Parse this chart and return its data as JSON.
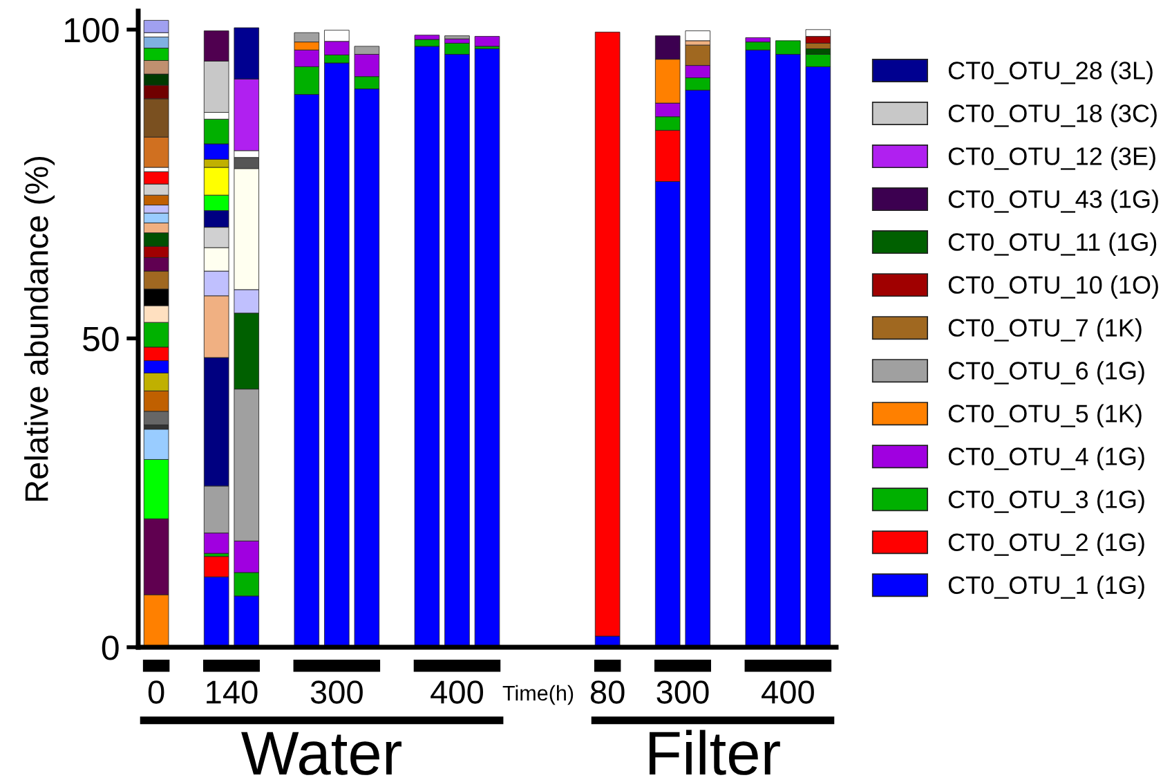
{
  "chart_data": {
    "type": "bar",
    "stacked": true,
    "ylabel": "Relative abundance (%)",
    "categories": [
      "0",
      null,
      "140",
      null,
      null,
      null,
      "300",
      null,
      null,
      null,
      "400",
      null,
      null,
      null,
      null,
      "80",
      null,
      "300",
      null,
      null,
      null,
      "400",
      null
    ],
    "ylim": [
      0,
      103
    ],
    "yticks": [
      0,
      50,
      100
    ],
    "legend": "right",
    "annotations": [
      "Time(h)",
      "Water",
      "Filter"
    ],
    "series": [
      {
        "name": "CT0_OTU_1 (1G)",
        "color": "#0000ff",
        "values": [
          null,
          null,
          11.4,
          8.3,
          null,
          89.5,
          94.6,
          90.4,
          null,
          97.3,
          96,
          96.9,
          null,
          null,
          null,
          1.8,
          null,
          75.4,
          90.2,
          null,
          96.7,
          96,
          94
        ]
      },
      {
        "name": "CT0_OTU_2 (1G)",
        "color": "#ff0000",
        "values": [
          null,
          null,
          3.3,
          null,
          null,
          null,
          null,
          null,
          null,
          null,
          null,
          null,
          null,
          null,
          null,
          97.8,
          null,
          8.3,
          null,
          null,
          null,
          null,
          null
        ]
      },
      {
        "name": "CT0_OTU_3 (1G)",
        "color": "#00b000",
        "values": [
          null,
          null,
          0.5,
          3.8,
          null,
          4.5,
          1.3,
          2,
          null,
          1.1,
          1.8,
          0.4,
          null,
          null,
          null,
          null,
          null,
          2.2,
          2,
          null,
          1.3,
          2.2,
          2
        ]
      },
      {
        "name": "CT0_OTU_4 (1G)",
        "color": "#a000e0",
        "values": [
          null,
          null,
          3.3,
          5.1,
          null,
          2.7,
          2.2,
          3.6,
          null,
          0.7,
          0.7,
          1.6,
          null,
          null,
          null,
          null,
          null,
          2.2,
          2,
          null,
          0.7,
          null,
          null
        ]
      },
      {
        "color": "#005000",
        "values": [
          null,
          null,
          null,
          null,
          null,
          null,
          null,
          null,
          null,
          null,
          null,
          null,
          null,
          null,
          null,
          null,
          null,
          null,
          null,
          null,
          null,
          null,
          0.9
        ]
      },
      {
        "name": "CT0_OTU_5 (1K)",
        "color": "#ff8000",
        "values": [
          8.5,
          null,
          null,
          null,
          null,
          1.3,
          null,
          null,
          null,
          null,
          null,
          null,
          null,
          null,
          null,
          null,
          null,
          7.1,
          null,
          null,
          null,
          null,
          null
        ]
      },
      {
        "name": "CT0_OTU_6 (1G)",
        "color": "#a0a0a0",
        "values": [
          null,
          null,
          7.6,
          24.6,
          null,
          1.5,
          null,
          1.3,
          null,
          null,
          0.5,
          null,
          null,
          null,
          null,
          null,
          null,
          null,
          null,
          null,
          null,
          null,
          null
        ]
      },
      {
        "name": "CT0_OTU_7 (1K)",
        "color": "#a06820",
        "values": [
          null,
          null,
          null,
          null,
          null,
          null,
          null,
          null,
          null,
          null,
          null,
          null,
          null,
          null,
          null,
          null,
          null,
          null,
          3.3,
          null,
          null,
          null,
          0.9
        ]
      },
      {
        "name": "CT0_OTU_10 (1O)",
        "color": "#a00000",
        "values": [
          null,
          null,
          null,
          null,
          null,
          null,
          null,
          null,
          null,
          null,
          null,
          null,
          null,
          null,
          null,
          null,
          null,
          null,
          null,
          null,
          null,
          null,
          1.1
        ]
      },
      {
        "name": "CT0_OTU_11 (1G)",
        "color": "#006000",
        "values": [
          null,
          null,
          null,
          12.3,
          null,
          null,
          null,
          null,
          null,
          null,
          null,
          null,
          null,
          null,
          null,
          null,
          null,
          null,
          null,
          null,
          null,
          null,
          null
        ]
      },
      {
        "name": "CT0_OTU_43 (1G)",
        "color": "#3c0050",
        "values": [
          null,
          null,
          null,
          null,
          null,
          null,
          null,
          null,
          null,
          null,
          null,
          null,
          null,
          null,
          null,
          null,
          null,
          3.8,
          null,
          null,
          null,
          null,
          null
        ]
      },
      {
        "color": "#f0b080",
        "values": [
          null,
          null,
          null,
          null,
          null,
          null,
          null,
          null,
          null,
          null,
          null,
          null,
          null,
          null,
          null,
          null,
          null,
          null,
          0.7,
          null,
          null,
          null,
          null
        ]
      },
      {
        "color": "#600050",
        "values": [
          12.3,
          null,
          null,
          null,
          null,
          null,
          null,
          null,
          null,
          null,
          null,
          null,
          null,
          null,
          null,
          null,
          null,
          null,
          null,
          null,
          null,
          null,
          null
        ]
      },
      {
        "color": "#00ff00",
        "values": [
          9.6,
          null,
          null,
          null,
          null,
          null,
          null,
          null,
          null,
          null,
          null,
          null,
          null,
          null,
          null,
          null,
          null,
          null,
          null,
          null,
          null,
          null,
          null
        ]
      },
      {
        "color": "#99ccff",
        "values": [
          4.9,
          null,
          null,
          null,
          null,
          null,
          null,
          null,
          null,
          null,
          null,
          null,
          null,
          null,
          null,
          null,
          null,
          null,
          null,
          null,
          null,
          null,
          null
        ]
      },
      {
        "color": "#333333",
        "values": [
          0.7,
          null,
          null,
          null,
          null,
          null,
          null,
          null,
          null,
          null,
          null,
          null,
          null,
          null,
          null,
          null,
          null,
          null,
          null,
          null,
          null,
          null,
          null
        ]
      },
      {
        "color": "#666666",
        "values": [
          2.2,
          null,
          null,
          null,
          null,
          null,
          null,
          null,
          null,
          null,
          null,
          null,
          null,
          null,
          null,
          null,
          null,
          null,
          null,
          null,
          null,
          null,
          null
        ]
      },
      {
        "color": "#c06000",
        "values": [
          3.3,
          null,
          null,
          null,
          null,
          null,
          null,
          null,
          null,
          null,
          null,
          null,
          null,
          null,
          null,
          null,
          null,
          null,
          null,
          null,
          null,
          null,
          null
        ]
      },
      {
        "color": "#c0b000",
        "values": [
          2.9,
          null,
          null,
          null,
          null,
          null,
          null,
          null,
          null,
          null,
          null,
          null,
          null,
          null,
          null,
          null,
          null,
          null,
          null,
          null,
          null,
          null,
          null
        ]
      },
      {
        "color": "#0000fe",
        "values": [
          2,
          null,
          null,
          null,
          null,
          null,
          null,
          null,
          null,
          null,
          null,
          null,
          null,
          null,
          null,
          null,
          null,
          null,
          null,
          null,
          null,
          null,
          null
        ]
      },
      {
        "color": "#fe0000",
        "values": [
          2.2,
          null,
          null,
          null,
          null,
          null,
          null,
          null,
          null,
          null,
          null,
          null,
          null,
          null,
          null,
          null,
          null,
          null,
          null,
          null,
          null,
          null,
          null
        ]
      },
      {
        "color": "#00b100",
        "values": [
          4,
          null,
          null,
          null,
          null,
          null,
          null,
          null,
          null,
          null,
          null,
          null,
          null,
          null,
          null,
          null,
          null,
          null,
          null,
          null,
          null,
          null,
          null
        ]
      },
      {
        "color": "#ffe0c0",
        "values": [
          2.7,
          null,
          null,
          null,
          null,
          null,
          null,
          null,
          null,
          null,
          null,
          null,
          null,
          null,
          null,
          null,
          null,
          null,
          null,
          null,
          null,
          null,
          null
        ]
      },
      {
        "color": "#000000",
        "values": [
          2.7,
          null,
          null,
          null,
          null,
          null,
          null,
          null,
          null,
          null,
          null,
          null,
          null,
          null,
          null,
          null,
          null,
          null,
          null,
          null,
          null,
          null,
          null
        ]
      },
      {
        "color": "#a06821",
        "values": [
          2.9,
          null,
          null,
          null,
          null,
          null,
          null,
          null,
          null,
          null,
          null,
          null,
          null,
          null,
          null,
          null,
          null,
          null,
          null,
          null,
          null,
          null,
          null
        ]
      },
      {
        "color": "#600051",
        "values": [
          2.2,
          null,
          null,
          null,
          null,
          null,
          null,
          null,
          null,
          null,
          null,
          null,
          null,
          null,
          null,
          null,
          null,
          null,
          null,
          null,
          null,
          null,
          null
        ]
      },
      {
        "color": "#a00001",
        "values": [
          1.8,
          null,
          null,
          null,
          null,
          null,
          null,
          null,
          null,
          null,
          null,
          null,
          null,
          null,
          null,
          null,
          null,
          null,
          null,
          null,
          null,
          null,
          null
        ]
      },
      {
        "color": "#005001",
        "values": [
          2.2,
          null,
          null,
          null,
          null,
          null,
          null,
          null,
          null,
          null,
          null,
          null,
          null,
          null,
          null,
          null,
          null,
          null,
          null,
          null,
          null,
          null,
          null
        ]
      },
      {
        "color": "#f0b081",
        "values": [
          1.6,
          null,
          null,
          null,
          null,
          null,
          null,
          null,
          null,
          null,
          null,
          null,
          null,
          null,
          null,
          null,
          null,
          null,
          null,
          null,
          null,
          null,
          null
        ]
      },
      {
        "color": "#99ccfe",
        "values": [
          1.6,
          null,
          null,
          null,
          null,
          null,
          null,
          null,
          null,
          null,
          null,
          null,
          null,
          null,
          null,
          null,
          null,
          null,
          null,
          null,
          null,
          null,
          null
        ]
      },
      {
        "color": "#c0c0ff",
        "values": [
          1.3,
          null,
          null,
          null,
          null,
          null,
          null,
          null,
          null,
          null,
          null,
          null,
          null,
          null,
          null,
          null,
          null,
          null,
          null,
          null,
          null,
          null,
          null
        ]
      },
      {
        "color": "#c06001",
        "values": [
          1.6,
          null,
          null,
          null,
          null,
          null,
          null,
          null,
          null,
          null,
          null,
          null,
          null,
          null,
          null,
          null,
          null,
          null,
          null,
          null,
          null,
          null,
          null
        ]
      },
      {
        "color": "#d0d0d0",
        "values": [
          1.8,
          null,
          null,
          null,
          null,
          null,
          null,
          null,
          null,
          null,
          null,
          null,
          null,
          null,
          null,
          null,
          null,
          null,
          null,
          null,
          null,
          null,
          null
        ]
      },
      {
        "color": "#fe0001",
        "values": [
          2,
          null,
          null,
          null,
          null,
          null,
          null,
          null,
          null,
          null,
          null,
          null,
          null,
          null,
          null,
          null,
          null,
          null,
          null,
          null,
          null,
          null,
          null
        ]
      },
      {
        "color": "#ffffff",
        "values": [
          0.7,
          null,
          null,
          null,
          null,
          null,
          null,
          null,
          null,
          null,
          null,
          null,
          null,
          null,
          null,
          null,
          null,
          null,
          null,
          null,
          null,
          null,
          null
        ]
      },
      {
        "color": "#d07020",
        "values": [
          4.9,
          null,
          null,
          null,
          null,
          null,
          null,
          null,
          null,
          null,
          null,
          null,
          null,
          null,
          null,
          null,
          null,
          null,
          null,
          null,
          null,
          null,
          null
        ]
      },
      {
        "color": "#7a5020",
        "values": [
          6.2,
          null,
          null,
          null,
          null,
          null,
          null,
          null,
          null,
          null,
          null,
          null,
          null,
          null,
          null,
          null,
          null,
          null,
          null,
          null,
          null,
          null,
          null
        ]
      },
      {
        "color": "#700000",
        "values": [
          2.2,
          null,
          null,
          null,
          null,
          null,
          null,
          null,
          null,
          null,
          null,
          null,
          null,
          null,
          null,
          null,
          null,
          null,
          null,
          null,
          null,
          null,
          null
        ]
      },
      {
        "color": "#003a00",
        "values": [
          1.8,
          null,
          null,
          null,
          null,
          null,
          null,
          null,
          null,
          null,
          null,
          null,
          null,
          null,
          null,
          null,
          null,
          null,
          null,
          null,
          null,
          null,
          null
        ]
      },
      {
        "color": "#c09070",
        "values": [
          2.2,
          null,
          null,
          null,
          null,
          null,
          null,
          null,
          null,
          null,
          null,
          null,
          null,
          null,
          null,
          null,
          null,
          null,
          null,
          null,
          null,
          null,
          null
        ]
      },
      {
        "color": "#00c000",
        "values": [
          2,
          null,
          null,
          null,
          null,
          null,
          null,
          null,
          null,
          null,
          null,
          null,
          null,
          null,
          null,
          null,
          null,
          null,
          null,
          null,
          null,
          null,
          null
        ]
      },
      {
        "color": "#80b0e0",
        "values": [
          1.8,
          null,
          null,
          null,
          null,
          null,
          null,
          null,
          null,
          null,
          null,
          null,
          null,
          null,
          null,
          null,
          null,
          null,
          null,
          null,
          null,
          null,
          null
        ]
      },
      {
        "color": "#fffffe",
        "values": [
          0.7,
          null,
          null,
          null,
          null,
          null,
          null,
          null,
          null,
          null,
          null,
          null,
          null,
          null,
          null,
          null,
          null,
          null,
          null,
          null,
          null,
          null,
          null
        ]
      },
      {
        "color": "#a0a0f0",
        "values": [
          2,
          null,
          null,
          null,
          null,
          null,
          null,
          null,
          null,
          null,
          null,
          null,
          null,
          null,
          null,
          null,
          null,
          null,
          null,
          null,
          null,
          null,
          null
        ]
      },
      {
        "color": "#000080",
        "values": [
          null,
          null,
          20.8,
          null,
          null,
          null,
          null,
          null,
          null,
          null,
          null,
          null,
          null,
          null,
          null,
          null,
          null,
          null,
          null,
          null,
          null,
          null,
          null
        ]
      },
      {
        "color": "#f0b082",
        "values": [
          null,
          null,
          10,
          null,
          null,
          null,
          null,
          null,
          null,
          null,
          null,
          null,
          null,
          null,
          null,
          null,
          null,
          null,
          null,
          null,
          null,
          null,
          null
        ]
      },
      {
        "color": "#c0c0fe",
        "values": [
          null,
          null,
          4,
          3.8,
          null,
          null,
          null,
          null,
          null,
          null,
          null,
          null,
          null,
          null,
          null,
          null,
          null,
          null,
          null,
          null,
          null,
          null,
          null
        ]
      },
      {
        "color": "#fffff0",
        "values": [
          null,
          null,
          3.8,
          19.6,
          null,
          null,
          null,
          null,
          null,
          null,
          null,
          null,
          null,
          null,
          null,
          null,
          null,
          null,
          null,
          null,
          null,
          null,
          null
        ]
      },
      {
        "color": "#d0d0d1",
        "values": [
          null,
          null,
          3.3,
          null,
          null,
          null,
          null,
          null,
          null,
          null,
          null,
          null,
          null,
          null,
          null,
          null,
          null,
          null,
          null,
          null,
          null,
          null,
          null
        ]
      },
      {
        "color": "#555555",
        "values": [
          null,
          null,
          null,
          1.8,
          null,
          null,
          null,
          null,
          null,
          null,
          null,
          null,
          null,
          null,
          null,
          null,
          null,
          null,
          null,
          null,
          null,
          null,
          null
        ]
      },
      {
        "color": "#000081",
        "values": [
          null,
          null,
          2.7,
          null,
          null,
          null,
          null,
          null,
          null,
          null,
          null,
          null,
          null,
          null,
          null,
          null,
          null,
          null,
          null,
          null,
          null,
          null,
          null
        ]
      },
      {
        "color": "#00fe00",
        "values": [
          null,
          null,
          2.5,
          null,
          null,
          null,
          null,
          null,
          null,
          null,
          null,
          null,
          null,
          null,
          null,
          null,
          null,
          null,
          null,
          null,
          null,
          null,
          null
        ]
      },
      {
        "color": "#ffff00",
        "values": [
          null,
          null,
          4.5,
          null,
          null,
          null,
          null,
          null,
          null,
          null,
          null,
          null,
          null,
          null,
          null,
          null,
          null,
          null,
          null,
          null,
          null,
          null,
          null
        ]
      },
      {
        "color": "#c0b001",
        "values": [
          null,
          null,
          1.3,
          null,
          null,
          null,
          null,
          null,
          null,
          null,
          null,
          null,
          null,
          null,
          null,
          null,
          null,
          null,
          null,
          null,
          null,
          null,
          null
        ]
      },
      {
        "color": "#0001ff",
        "values": [
          null,
          null,
          2.5,
          null,
          null,
          null,
          null,
          null,
          null,
          null,
          null,
          null,
          null,
          null,
          null,
          null,
          null,
          null,
          null,
          null,
          null,
          null,
          null
        ]
      },
      {
        "color": "#01b000",
        "values": [
          null,
          null,
          4,
          null,
          null,
          null,
          null,
          null,
          null,
          null,
          null,
          null,
          null,
          null,
          null,
          null,
          null,
          null,
          null,
          null,
          null,
          null,
          null
        ]
      },
      {
        "color": "#fefffe",
        "values": [
          null,
          null,
          1.1,
          1.1,
          null,
          null,
          null,
          null,
          null,
          null,
          null,
          null,
          null,
          null,
          null,
          null,
          null,
          null,
          null,
          null,
          null,
          null,
          null
        ]
      },
      {
        "name": "CT0_OTU_12 (3E)",
        "color": "#b020f0",
        "values": [
          null,
          null,
          null,
          11.6,
          null,
          null,
          null,
          null,
          null,
          null,
          null,
          null,
          null,
          null,
          null,
          null,
          null,
          null,
          null,
          null,
          null,
          null,
          null
        ]
      },
      {
        "name": "CT0_OTU_18 (3C)",
        "color": "#c8c8c8",
        "values": [
          null,
          null,
          8.3,
          null,
          null,
          null,
          null,
          null,
          null,
          null,
          null,
          null,
          null,
          null,
          null,
          null,
          null,
          null,
          null,
          null,
          null,
          null,
          null
        ]
      },
      {
        "name": "CT0_OTU_28 (3L)",
        "color": "#000090",
        "values": [
          null,
          null,
          null,
          8.3,
          null,
          null,
          null,
          null,
          null,
          null,
          null,
          null,
          null,
          null,
          null,
          null,
          null,
          null,
          null,
          null,
          null,
          null,
          null
        ]
      },
      {
        "color": "#500050",
        "values": [
          null,
          null,
          4.9,
          null,
          null,
          null,
          null,
          null,
          null,
          null,
          null,
          null,
          null,
          null,
          null,
          null,
          null,
          null,
          null,
          null,
          null,
          null,
          null
        ]
      },
      {
        "color": "#fffefe",
        "values": [
          null,
          null,
          null,
          null,
          null,
          null,
          1.8,
          null,
          null,
          null,
          null,
          null,
          null,
          null,
          null,
          null,
          null,
          null,
          1.6,
          null,
          null,
          null,
          1.1
        ]
      }
    ]
  }
}
